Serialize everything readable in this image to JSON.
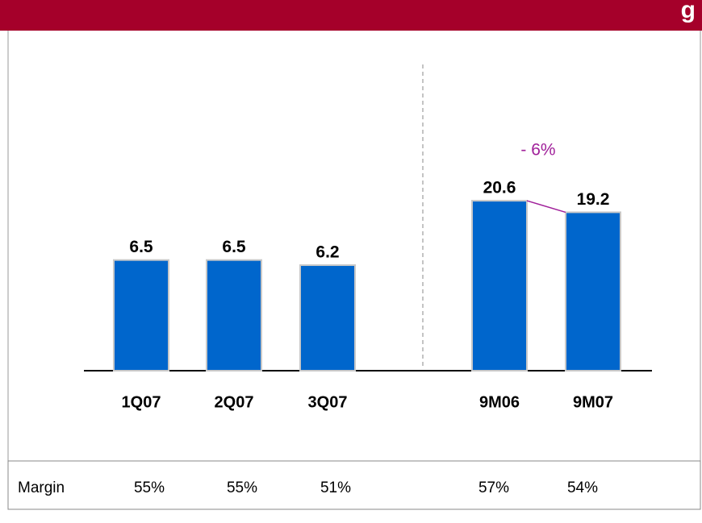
{
  "header": {
    "title": "g"
  },
  "chart_data": [
    {
      "type": "bar",
      "categories": [
        "1Q07",
        "2Q07",
        "3Q07"
      ],
      "values": [
        6.5,
        6.5,
        6.2
      ],
      "color": "#0066cc",
      "ylim": [
        0,
        14.2
      ]
    },
    {
      "type": "bar",
      "categories": [
        "9M06",
        "9M07"
      ],
      "values": [
        20.6,
        19.2
      ],
      "color": "#0066cc",
      "ylim": [
        0,
        29.3
      ],
      "annotation": "- 6%",
      "annotation_color": "#a0209a"
    }
  ],
  "margin_row": {
    "label": "Margin",
    "cells": [
      "55%",
      "55%",
      "51%",
      "57%",
      "54%"
    ]
  }
}
